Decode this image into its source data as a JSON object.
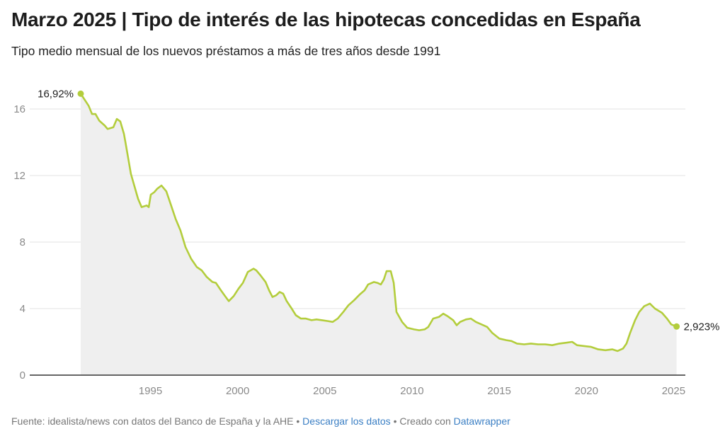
{
  "header": {
    "title": "Marzo 2025 | Tipo de interés de las hipotecas concedidas en España",
    "subtitle": "Tipo medio mensual de los nuevos préstamos a más de tres años desde 1991"
  },
  "footer": {
    "source": "Fuente: idealista/news con datos del Banco de España y la AHE",
    "sep1": " • ",
    "download_link": "Descargar los datos",
    "sep2": " • Creado con ",
    "datawrapper_link": "Datawrapper"
  },
  "chart_data": {
    "type": "area",
    "title": "Marzo 2025 | Tipo de interés de las hipotecas concedidas en España",
    "subtitle": "Tipo medio mensual de los nuevos préstamos a más de tres años desde 1991",
    "xlim": [
      1991,
      2025.2
    ],
    "ylim": [
      0,
      17
    ],
    "x_ticks": [
      1995,
      2000,
      2005,
      2010,
      2015,
      2020,
      2025
    ],
    "y_ticks": [
      0,
      4,
      8,
      12,
      16
    ],
    "grid": true,
    "colors": {
      "line": "#b3cd3c",
      "area": "#efefef",
      "grid": "#e3e3e3",
      "axis": "#333333"
    },
    "annotations": [
      {
        "label": "16,92%",
        "x": 1991.0,
        "y": 16.92
      },
      {
        "label": "2,923%",
        "x": 2025.17,
        "y": 2.923
      }
    ],
    "x": [
      1991.0,
      1991.45,
      1991.65,
      1991.85,
      1992.06,
      1992.38,
      1992.54,
      1992.87,
      1993.07,
      1993.27,
      1993.48,
      1993.6,
      1993.88,
      1994.29,
      1994.49,
      1994.78,
      1994.9,
      1995.02,
      1995.22,
      1995.38,
      1995.63,
      1995.91,
      1996.12,
      1996.44,
      1996.72,
      1997.01,
      1997.33,
      1997.66,
      1997.94,
      1998.23,
      1998.55,
      1998.75,
      1999.04,
      1999.28,
      1999.49,
      1999.77,
      2000.05,
      2000.3,
      2000.58,
      2000.91,
      2001.07,
      2001.31,
      2001.6,
      2001.8,
      2002.0,
      2002.21,
      2002.41,
      2002.61,
      2002.81,
      2003.1,
      2003.34,
      2003.63,
      2003.91,
      2004.24,
      2004.52,
      2004.84,
      2005.17,
      2005.45,
      2005.74,
      2006.06,
      2006.35,
      2006.67,
      2007.0,
      2007.28,
      2007.48,
      2007.81,
      2008.01,
      2008.21,
      2008.38,
      2008.54,
      2008.78,
      2008.95,
      2009.11,
      2009.43,
      2009.72,
      2010.12,
      2010.41,
      2010.72,
      2010.93,
      2011.21,
      2011.54,
      2011.79,
      2012.03,
      2012.36,
      2012.56,
      2012.76,
      2013.09,
      2013.37,
      2013.66,
      2013.98,
      2014.31,
      2014.59,
      2015.0,
      2015.41,
      2015.7,
      2016.02,
      2016.43,
      2016.82,
      2017.23,
      2017.64,
      2018.04,
      2018.45,
      2018.85,
      2019.18,
      2019.46,
      2019.87,
      2020.27,
      2020.68,
      2021.09,
      2021.49,
      2021.78,
      2022.1,
      2022.3,
      2022.51,
      2022.79,
      2023.03,
      2023.32,
      2023.64,
      2023.93,
      2024.33,
      2024.62,
      2024.86,
      2025.17
    ],
    "y": [
      16.92,
      16.2,
      15.7,
      15.7,
      15.3,
      15.0,
      14.8,
      14.9,
      15.4,
      15.25,
      14.5,
      13.8,
      12.1,
      10.6,
      10.1,
      10.2,
      10.1,
      10.85,
      11.0,
      11.2,
      11.4,
      11.05,
      10.4,
      9.4,
      8.7,
      7.7,
      7.0,
      6.5,
      6.3,
      5.9,
      5.6,
      5.55,
      5.1,
      4.75,
      4.45,
      4.75,
      5.2,
      5.55,
      6.2,
      6.4,
      6.3,
      6.0,
      5.6,
      5.1,
      4.7,
      4.8,
      5.0,
      4.9,
      4.45,
      4.0,
      3.6,
      3.4,
      3.4,
      3.3,
      3.35,
      3.3,
      3.25,
      3.2,
      3.4,
      3.8,
      4.2,
      4.5,
      4.85,
      5.1,
      5.45,
      5.6,
      5.55,
      5.45,
      5.75,
      6.25,
      6.25,
      5.55,
      3.8,
      3.2,
      2.85,
      2.75,
      2.7,
      2.75,
      2.9,
      3.4,
      3.5,
      3.7,
      3.55,
      3.3,
      3.0,
      3.2,
      3.35,
      3.4,
      3.2,
      3.05,
      2.9,
      2.55,
      2.2,
      2.1,
      2.05,
      1.9,
      1.85,
      1.9,
      1.85,
      1.85,
      1.8,
      1.9,
      1.95,
      2.0,
      1.8,
      1.75,
      1.7,
      1.55,
      1.5,
      1.55,
      1.45,
      1.6,
      1.9,
      2.55,
      3.3,
      3.8,
      4.15,
      4.3,
      4.0,
      3.75,
      3.4,
      3.05,
      2.923
    ]
  }
}
